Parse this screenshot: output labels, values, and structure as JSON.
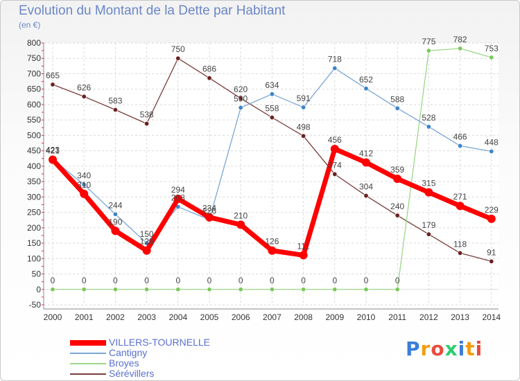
{
  "header": {
    "title": "Evolution du Montant de la Dette par Habitant",
    "unit": "(en €)"
  },
  "logo": {
    "text": "Proxiti",
    "colors": [
      "#3a7ed8",
      "#f39c12",
      "#e74c3c",
      "#2ecc71",
      "#3a7ed8",
      "#f39c12",
      "#e74c3c"
    ]
  },
  "chart_data": {
    "type": "line",
    "title": "Evolution du Montant de la Dette par Habitant",
    "ylabel": "(en €)",
    "xlabel": "",
    "x": [
      "2000",
      "2001",
      "2002",
      "2003",
      "2004",
      "2005",
      "2006",
      "2007",
      "2008",
      "2009",
      "2010",
      "2011",
      "2012",
      "2013",
      "2014"
    ],
    "ylim": [
      -50,
      800
    ],
    "yticks": [
      -50,
      0,
      50,
      100,
      150,
      200,
      250,
      300,
      350,
      400,
      450,
      500,
      550,
      600,
      650,
      700,
      750,
      800
    ],
    "grid": true,
    "legend_position": "bottom-left",
    "series": [
      {
        "name": "VILLERS-TOURNELLE",
        "color": "#ff0000",
        "marker": "#ff0000",
        "width": 7,
        "values": [
          421,
          310,
          190,
          126,
          294,
          234,
          210,
          126,
          111,
          456,
          412,
          359,
          315,
          271,
          229
        ]
      },
      {
        "name": "Cantigny",
        "color": "#7aa6d6",
        "marker": "#3c84c9",
        "width": 1.3,
        "values": [
          423,
          340,
          244,
          150,
          268,
          226,
          590,
          634,
          591,
          718,
          652,
          588,
          528,
          466,
          448
        ]
      },
      {
        "name": "Broyes",
        "color": "#9ed68a",
        "marker": "#7cc95a",
        "width": 1.3,
        "values": [
          0,
          0,
          0,
          0,
          0,
          0,
          0,
          0,
          0,
          0,
          0,
          0,
          775,
          782,
          753
        ]
      },
      {
        "name": "Sérévillers",
        "color": "#7a3b3b",
        "marker": "#6b2020",
        "width": 1.3,
        "values": [
          665,
          626,
          583,
          538,
          750,
          686,
          620,
          558,
          498,
          374,
          304,
          240,
          179,
          118,
          91
        ]
      }
    ],
    "data_labels": [
      [
        "421",
        "310",
        "190",
        "126",
        "294",
        "234",
        "210",
        "126",
        "111",
        "456",
        "412",
        "359",
        "315",
        "271",
        "229"
      ],
      [
        "423",
        "340",
        "244",
        "150",
        "268",
        "226",
        "590",
        "634",
        "591",
        "718",
        "652",
        "588",
        "528",
        "466",
        "448"
      ],
      [
        "0",
        "0",
        "0",
        "0",
        "0",
        "0",
        "0",
        "0",
        "0",
        "0",
        "0",
        "0",
        "775",
        "782",
        "753"
      ],
      [
        "665",
        "626",
        "583",
        "538",
        "750",
        "686",
        "620",
        "558",
        "498",
        "374",
        "304",
        "240",
        "179",
        "118",
        "91"
      ]
    ]
  }
}
